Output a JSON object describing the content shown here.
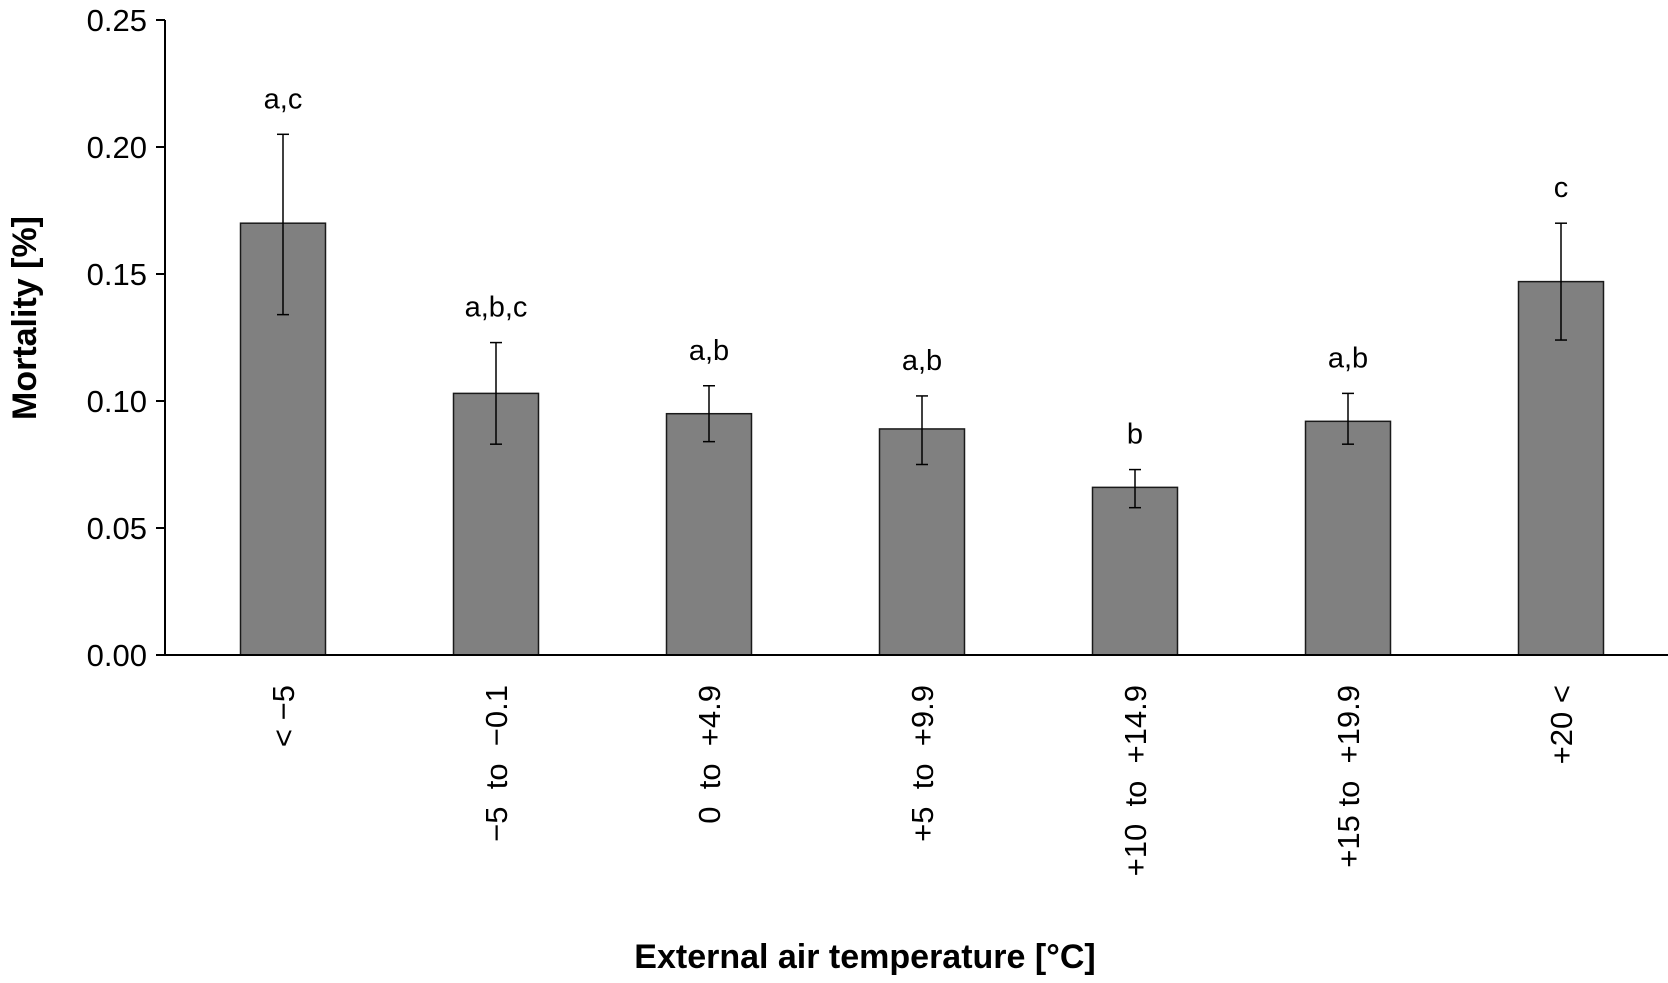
{
  "chart_data": {
    "type": "bar",
    "title": "",
    "xlabel": "External air temperature [°C]",
    "ylabel": "Mortality [%]",
    "ylim": [
      0,
      0.25
    ],
    "yticks": [
      "0.00",
      "0.05",
      "0.10",
      "0.15",
      "0.20",
      "0.25"
    ],
    "grid": false,
    "categories": [
      "< −5",
      "−5  to  −0.1",
      "0  to  +4.9",
      "+5  to  +9.9",
      "+10  to  +14.9",
      "+15 to  +19.9",
      "+20 <"
    ],
    "values": [
      0.17,
      0.103,
      0.095,
      0.089,
      0.066,
      0.092,
      0.147
    ],
    "error_low": [
      0.134,
      0.083,
      0.084,
      0.075,
      0.058,
      0.083,
      0.124
    ],
    "error_high": [
      0.205,
      0.123,
      0.106,
      0.102,
      0.073,
      0.103,
      0.17
    ],
    "significance_labels": [
      "a,c",
      "a,b,c",
      "a,b",
      "a,b",
      "b",
      "a,b",
      "c"
    ],
    "colors": {
      "bar_fill": "#808080",
      "bar_stroke": "#1a1a1a",
      "axis": "#000000"
    }
  }
}
